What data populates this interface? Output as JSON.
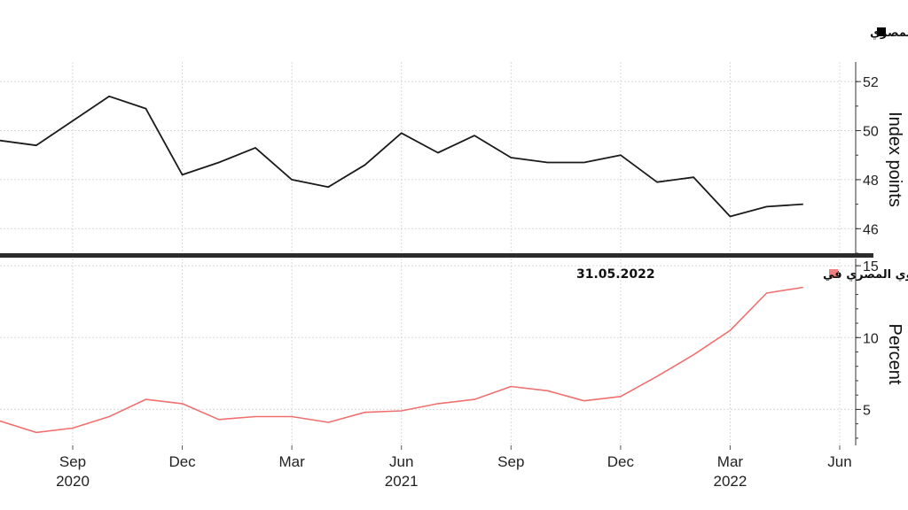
{
  "chart_data": [
    {
      "type": "line",
      "legend": "مؤشر مديري المشتريات المصري",
      "legend_color": "#000000",
      "line_color": "#1a1a1a",
      "ylabel": "Index points",
      "y_ticks": [
        46,
        48,
        50,
        52
      ],
      "ylim": [
        45.0,
        52.8
      ],
      "axis_side": "right",
      "grid": true,
      "x": [
        "2020-07",
        "2020-08",
        "2020-09",
        "2020-10",
        "2020-11",
        "2020-12",
        "2021-01",
        "2021-02",
        "2021-03",
        "2021-04",
        "2021-05",
        "2021-06",
        "2021-07",
        "2021-08",
        "2021-09",
        "2021-10",
        "2021-11",
        "2021-12",
        "2022-01",
        "2022-02",
        "2022-03",
        "2022-04",
        "2022-05"
      ],
      "values": [
        49.6,
        49.4,
        50.4,
        51.4,
        50.9,
        48.2,
        48.7,
        49.3,
        48.0,
        47.7,
        48.6,
        49.9,
        49.1,
        49.8,
        48.9,
        48.7,
        48.7,
        49.0,
        47.9,
        48.1,
        46.5,
        46.9,
        47.0
      ]
    },
    {
      "type": "line",
      "legend_text": "معدل التضخم السنوي المصري في",
      "legend_date": "31.05.2022",
      "legend_color": "#f08080",
      "line_color": "#f07070",
      "ylabel": "Percent",
      "y_ticks": [
        5,
        10,
        15
      ],
      "ylim": [
        2.5,
        15.5
      ],
      "axis_side": "right",
      "grid": true,
      "x": [
        "2020-07",
        "2020-08",
        "2020-09",
        "2020-10",
        "2020-11",
        "2020-12",
        "2021-01",
        "2021-02",
        "2021-03",
        "2021-04",
        "2021-05",
        "2021-06",
        "2021-07",
        "2021-08",
        "2021-09",
        "2021-10",
        "2021-11",
        "2021-12",
        "2022-01",
        "2022-02",
        "2022-03",
        "2022-04",
        "2022-05"
      ],
      "values": [
        4.2,
        3.4,
        3.7,
        4.5,
        5.7,
        5.4,
        4.3,
        4.5,
        4.5,
        4.1,
        4.8,
        4.9,
        5.4,
        5.7,
        6.6,
        6.3,
        5.6,
        5.9,
        7.3,
        8.8,
        10.5,
        13.1,
        13.5
      ]
    }
  ],
  "x_axis": {
    "tick_labels": [
      {
        "month": "Sep",
        "year": "2020",
        "date": "2020-09"
      },
      {
        "month": "Dec",
        "year": "",
        "date": "2020-12"
      },
      {
        "month": "Mar",
        "year": "",
        "date": "2021-03"
      },
      {
        "month": "Jun",
        "year": "2021",
        "date": "2021-06"
      },
      {
        "month": "Sep",
        "year": "",
        "date": "2021-09"
      },
      {
        "month": "Dec",
        "year": "",
        "date": "2021-12"
      },
      {
        "month": "Mar",
        "year": "2022",
        "date": "2022-03"
      },
      {
        "month": "Jun",
        "year": "",
        "date": "2022-06"
      }
    ]
  }
}
